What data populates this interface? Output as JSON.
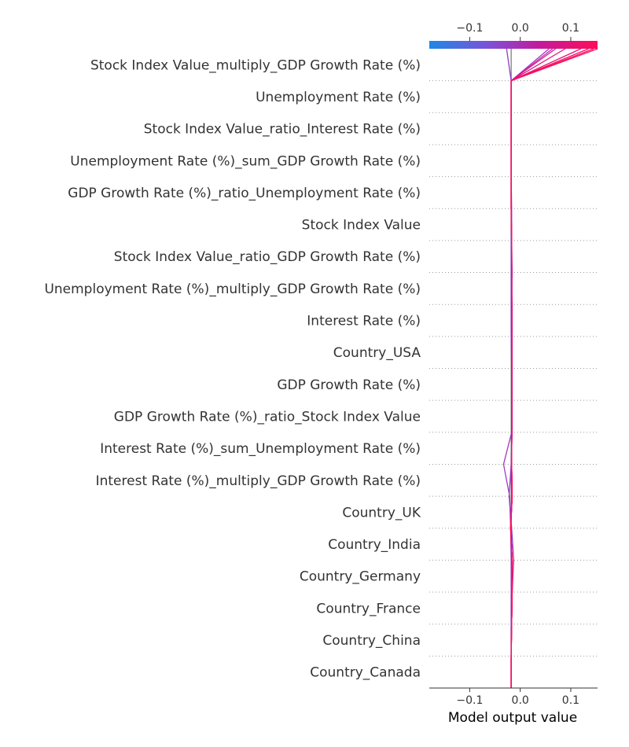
{
  "chart_data": {
    "type": "line",
    "chart_kind": "shap decision plot",
    "title": "",
    "xlabel": "Model output value",
    "ylabel": "",
    "xlim": [
      -0.18,
      0.153
    ],
    "x_ticks": [
      -0.1,
      0.0,
      0.1
    ],
    "x_tick_labels": [
      "−0.1",
      "0.0",
      "0.1"
    ],
    "base_value": -0.018,
    "grid": "dotted horizontal lines between features",
    "legend": "colorbar at top",
    "colorbar": {
      "range": [
        -0.18,
        0.153
      ],
      "colors": [
        "#1e88e5",
        "#7c52d8",
        "#c21a9e",
        "#ff0d57"
      ]
    },
    "features": [
      "Stock Index Value_multiply_GDP Growth Rate (%)",
      "Unemployment Rate (%)",
      "Stock Index Value_ratio_Interest Rate (%)",
      "Unemployment Rate (%)_sum_GDP Growth Rate (%)",
      "GDP Growth Rate (%)_ratio_Unemployment Rate (%)",
      "Stock Index Value",
      "Stock Index Value_ratio_GDP Growth Rate (%)",
      "Unemployment Rate (%)_multiply_GDP Growth Rate (%)",
      "Interest Rate (%)",
      "Country_USA",
      "GDP Growth Rate (%)",
      "GDP Growth Rate (%)_ratio_Stock Index Value",
      "Interest Rate (%)_sum_Unemployment Rate (%)",
      "Interest Rate (%)_multiply_GDP Growth Rate (%)",
      "Country_UK",
      "Country_India",
      "Country_Germany",
      "Country_France",
      "Country_China",
      "Country_Canada"
    ],
    "feature_order_note": "top to bottom",
    "series": [
      {
        "output": -0.018,
        "color": "#888888",
        "cumulative": [
          -0.018,
          -0.018,
          -0.018,
          -0.018,
          -0.018,
          -0.018,
          -0.018,
          -0.018,
          -0.018,
          -0.018,
          -0.018,
          -0.018,
          -0.018,
          -0.018,
          -0.018,
          -0.018,
          -0.018,
          -0.018,
          -0.018,
          -0.018,
          -0.018
        ]
      },
      {
        "output": -0.027,
        "color": "#8e3bc8",
        "cumulative": [
          -0.018,
          -0.018,
          -0.018,
          -0.016,
          -0.013,
          -0.017,
          -0.022,
          -0.018,
          -0.016,
          -0.017,
          -0.017,
          -0.018,
          -0.018,
          -0.018,
          -0.018,
          -0.018,
          -0.018,
          -0.018,
          -0.018,
          -0.018,
          -0.027
        ]
      },
      {
        "output": 0.057,
        "color": "#a238c0",
        "cumulative": [
          -0.018,
          -0.018,
          -0.018,
          -0.018,
          -0.018,
          -0.019,
          -0.021,
          -0.033,
          -0.017,
          -0.016,
          -0.017,
          -0.017,
          -0.017,
          -0.016,
          -0.017,
          -0.017,
          -0.018,
          -0.018,
          -0.018,
          -0.018,
          0.057
        ]
      },
      {
        "output": 0.064,
        "color": "#c028a6",
        "cumulative": [
          -0.018,
          -0.018,
          -0.017,
          -0.016,
          -0.016,
          -0.019,
          -0.017,
          -0.018,
          -0.016,
          -0.016,
          -0.016,
          -0.016,
          -0.016,
          -0.017,
          -0.017,
          -0.018,
          -0.018,
          -0.018,
          -0.018,
          -0.018,
          0.064
        ]
      },
      {
        "output": 0.07,
        "color": "#d61c8c",
        "cumulative": [
          -0.018,
          -0.018,
          -0.017,
          -0.016,
          -0.016,
          -0.019,
          -0.016,
          -0.017,
          -0.017,
          -0.017,
          -0.017,
          -0.017,
          -0.017,
          -0.017,
          -0.017,
          -0.018,
          -0.018,
          -0.018,
          -0.018,
          -0.018,
          0.07
        ]
      },
      {
        "output": 0.089,
        "color": "#e01880",
        "cumulative": [
          -0.018,
          -0.018,
          -0.017,
          -0.016,
          -0.016,
          -0.019,
          -0.016,
          -0.017,
          -0.017,
          -0.017,
          -0.017,
          -0.017,
          -0.017,
          -0.017,
          -0.017,
          -0.018,
          -0.018,
          -0.018,
          -0.018,
          -0.018,
          0.089
        ]
      },
      {
        "output": 0.12,
        "color": "#ea1370",
        "cumulative": [
          -0.018,
          -0.018,
          -0.017,
          -0.016,
          -0.016,
          -0.019,
          -0.016,
          -0.017,
          -0.017,
          -0.017,
          -0.017,
          -0.017,
          -0.017,
          -0.017,
          -0.017,
          -0.018,
          -0.018,
          -0.018,
          -0.018,
          -0.018,
          0.12
        ]
      },
      {
        "output": 0.135,
        "color": "#f01068",
        "cumulative": [
          -0.018,
          -0.018,
          -0.017,
          -0.016,
          -0.016,
          -0.019,
          -0.016,
          -0.017,
          -0.017,
          -0.017,
          -0.017,
          -0.017,
          -0.017,
          -0.017,
          -0.017,
          -0.018,
          -0.018,
          -0.018,
          -0.018,
          -0.018,
          0.135
        ]
      },
      {
        "output": 0.145,
        "color": "#f70d5e",
        "cumulative": [
          -0.018,
          -0.018,
          -0.017,
          -0.016,
          -0.016,
          -0.019,
          -0.016,
          -0.017,
          -0.017,
          -0.017,
          -0.017,
          -0.017,
          -0.017,
          -0.017,
          -0.017,
          -0.018,
          -0.018,
          -0.018,
          -0.018,
          -0.018,
          0.145
        ]
      },
      {
        "output": 0.153,
        "color": "#ff0d57",
        "cumulative": [
          -0.018,
          -0.018,
          -0.017,
          -0.016,
          -0.016,
          -0.019,
          -0.016,
          -0.017,
          -0.017,
          -0.017,
          -0.017,
          -0.017,
          -0.017,
          -0.017,
          -0.017,
          -0.018,
          -0.018,
          -0.018,
          -0.018,
          -0.018,
          0.153
        ]
      }
    ]
  }
}
